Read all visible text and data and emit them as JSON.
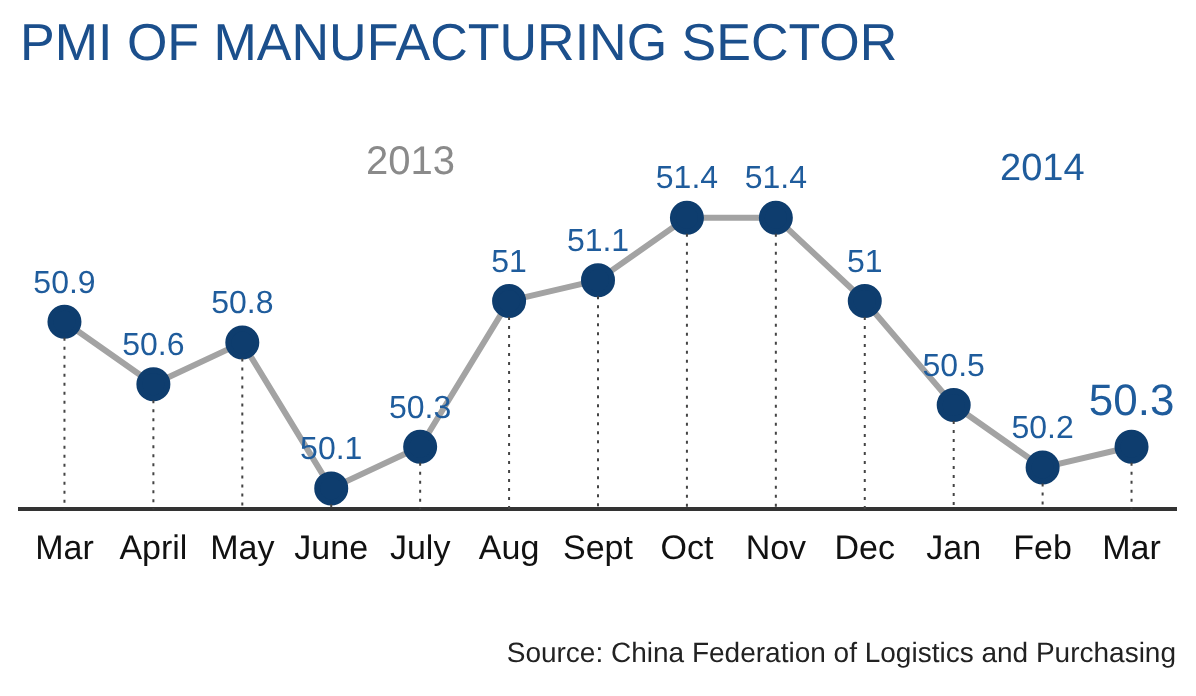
{
  "chart_data": {
    "type": "line",
    "title": "PMI OF MANUFACTURING SECTOR",
    "annotations": [
      "2013",
      "2014",
      "Source: China Federation of Logistics and Purchasing"
    ],
    "categories": [
      "Mar",
      "April",
      "May",
      "June",
      "July",
      "Aug",
      "Sept",
      "Oct",
      "Nov",
      "Dec",
      "Jan",
      "Feb",
      "Mar"
    ],
    "values": [
      50.9,
      50.6,
      50.8,
      50.1,
      50.3,
      51,
      51.1,
      51.4,
      51.4,
      51,
      50.5,
      50.2,
      50.3
    ],
    "color": "#a3a3a3",
    "tick_labels": "x",
    "data_labels": true,
    "grid": "x",
    "legend": false,
    "marker": "circle",
    "line_style": "solid"
  }
}
